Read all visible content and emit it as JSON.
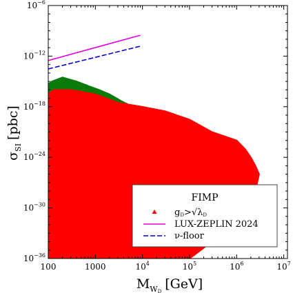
{
  "chart_data": {
    "type": "scatter",
    "xscale": "log",
    "yscale": "log",
    "xlim": [
      100,
      12000000
    ],
    "ylim": [
      1e-36,
      1e-06
    ],
    "xlabel": "M_{W_D} [GeV]",
    "xlabel_main": "M",
    "xlabel_sub": "W",
    "xlabel_subsub": "D",
    "xlabel_unit": "[GeV]",
    "ylabel": "σ_SI [pbc]",
    "ylabel_main": "σ",
    "ylabel_sub": "SI",
    "ylabel_unit": "[pbc]",
    "x_ticks": [
      {
        "value": 100,
        "label": "100"
      },
      {
        "value": 1000,
        "label": "1000"
      },
      {
        "value": 10000,
        "base": "10",
        "exp": "4"
      },
      {
        "value": 100000,
        "base": "10",
        "exp": "5"
      },
      {
        "value": 1000000,
        "base": "10",
        "exp": "6"
      },
      {
        "value": 10000000,
        "base": "10",
        "exp": "7"
      }
    ],
    "y_ticks": [
      {
        "value": 1e-36,
        "base": "10",
        "exp": "−36"
      },
      {
        "value": 1e-30,
        "base": "10",
        "exp": "−30"
      },
      {
        "value": 1e-24,
        "base": "10",
        "exp": "−24"
      },
      {
        "value": 1e-18,
        "base": "10",
        "exp": "−18"
      },
      {
        "value": 1e-12,
        "base": "10",
        "exp": "−12"
      },
      {
        "value": 1e-06,
        "base": "10",
        "exp": "−6"
      }
    ],
    "legend": {
      "title": "FIMP",
      "location": "lower-right",
      "entries": [
        {
          "label_main": "g",
          "label_sub": "D",
          "label_rest": ">√λ",
          "label_sub2": "D",
          "kind": "marker"
        },
        {
          "label": "LUX-ZEPLIN 2024",
          "kind": "line"
        },
        {
          "label": "ν-floor",
          "kind": "dashed-line"
        }
      ]
    },
    "colors": {
      "red_points": "#ff0000",
      "green_points": "#0a7a0a",
      "lux_zeplin": "#e000e0",
      "nu_floor": "#0000cc"
    },
    "series": [
      {
        "name": "LUX-ZEPLIN 2024",
        "kind": "line",
        "x": [
          100,
          9000
        ],
        "y": [
          3e-13,
          3e-10
        ]
      },
      {
        "kind": "dashed-line",
        "x": [
          100,
          9000
        ],
        "y": [
          3e-14,
          1.5e-11
        ]
      },
      {
        "kind": "scatter-region",
        "x": [
          100,
          100,
          130,
          300,
          1000,
          3000,
          10000,
          30000,
          100000,
          300000,
          1000000,
          1500000,
          2000000,
          2500000,
          3000000,
          2500000,
          1500000,
          700000,
          300000,
          100000
        ],
        "y": [
          1e-36,
          3e-17,
          1e-16,
          1e-16,
          3e-17,
          3e-18,
          1e-18,
          3e-19,
          3e-20,
          1e-21,
          1e-22,
          1e-23,
          1e-24,
          1e-25,
          1e-26,
          1e-28,
          1e-30,
          1e-32,
          1e-34,
          1e-36
        ]
      },
      {
        "kind": "scatter-region",
        "x": [
          100,
          100,
          120,
          200,
          400,
          700,
          1200,
          2000,
          3500,
          6000,
          10000,
          16000,
          20000,
          15000,
          10000,
          5000,
          2000,
          1000,
          500,
          250
        ],
        "y": [
          1e-36,
          5e-16,
          1e-15,
          3e-15,
          1e-15,
          3e-16,
          1e-16,
          3e-17,
          5e-18,
          1e-18,
          1e-19,
          1e-21,
          1e-24,
          1e-28,
          1e-31,
          1e-33,
          1e-34,
          1e-35,
          1e-36,
          1e-36
        ]
      }
    ]
  }
}
